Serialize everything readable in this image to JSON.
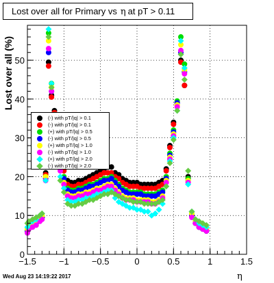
{
  "canvas": {
    "title_prefix": "Lost over all for Primary vs",
    "title_symbol": "η",
    "title_suffix": "at pT > 0.11"
  },
  "footer": {
    "date": "Wed Aug 23 14:19:22 2017"
  },
  "chart_data": {
    "type": "scatter",
    "ylabel": "Lost over all (%)",
    "xlabel": "η",
    "xlim": [
      -1.5,
      1.5
    ],
    "ylim": [
      0,
      59
    ],
    "xticks": [
      -1.5,
      -1.0,
      -0.5,
      0.0,
      0.5,
      1.0,
      1.5
    ],
    "xtick_labels": [
      "−1.5",
      "−1",
      "−0.5",
      "0",
      "0.5",
      "1",
      "1.5"
    ],
    "yticks": [
      0,
      10,
      20,
      30,
      40,
      50
    ],
    "ytick_labels": [
      "0",
      "10",
      "20",
      "30",
      "40",
      "50"
    ],
    "grid": true,
    "legend_position": "left",
    "series": [
      {
        "name": "(-) with pT/|q| > 0.1",
        "color": "#000000",
        "marker": "circle",
        "values": [
          6,
          7,
          7.5,
          8,
          9,
          9.5,
          21,
          49.5,
          41,
          37,
          32,
          25,
          22,
          19,
          18.5,
          18.5,
          19,
          19,
          19.5,
          20,
          20.5,
          21,
          21.5,
          22,
          22.5,
          22.5,
          21,
          20.5,
          19.5,
          19,
          18.5,
          18.5,
          18.5,
          18,
          18,
          18,
          18,
          18,
          18.5,
          19,
          22,
          28,
          34,
          39,
          50,
          43.5,
          20,
          10,
          8,
          7,
          6.5,
          6
        ]
      },
      {
        "name": "(-) with pT/|q| > 0.1",
        "color": "#ff0000",
        "marker": "circle",
        "values": [
          6,
          7,
          7.5,
          8,
          9,
          9.5,
          20.5,
          48.5,
          40.5,
          36.5,
          31.5,
          24.5,
          21.5,
          18,
          17.5,
          17.5,
          18,
          18,
          18.5,
          19,
          19.5,
          20,
          20.5,
          21,
          21,
          21,
          20,
          19.5,
          18.5,
          18,
          17.5,
          17.5,
          17.5,
          17,
          17,
          17,
          17,
          17,
          17.5,
          18,
          21.5,
          27.5,
          33.5,
          38.5,
          49.5,
          43.5,
          19.5,
          10,
          8,
          7,
          6.5,
          6
        ]
      },
      {
        "name": "(+) with pT/|q| > 0.5",
        "color": "#00dd00",
        "marker": "circle",
        "values": [
          6.5,
          7.5,
          8,
          8.5,
          9.5,
          10,
          20,
          57,
          44,
          36,
          30,
          23.5,
          20,
          17,
          16.5,
          16.5,
          17,
          17,
          17.5,
          18,
          18,
          18.5,
          19,
          19.5,
          19.5,
          20,
          19,
          18,
          17,
          16.5,
          16,
          16,
          16,
          16,
          15.5,
          15.5,
          15.5,
          15.5,
          16,
          16.5,
          20,
          26,
          32,
          39.5,
          56,
          49,
          19.5,
          10.5,
          8.5,
          7.5,
          7,
          6.5
        ]
      },
      {
        "name": "(-) with pT/|q| > 0.5",
        "color": "#0000ff",
        "marker": "circle",
        "values": [
          6,
          7,
          7.5,
          8,
          9,
          9.5,
          19.5,
          52,
          42,
          35,
          29.5,
          23,
          19.5,
          16.5,
          16,
          16,
          16.5,
          16.5,
          17,
          17.5,
          17.5,
          18,
          18.5,
          19,
          19,
          19.5,
          18.5,
          17.5,
          16.5,
          16,
          15.5,
          15.5,
          15.5,
          15.5,
          15,
          15,
          15,
          15,
          15.5,
          16,
          19.5,
          25.5,
          31.5,
          39,
          52,
          47,
          19,
          10,
          8,
          7,
          6.5,
          6
        ]
      },
      {
        "name": "(+) with pT/|q| > 1.0",
        "color": "#ffff00",
        "marker": "circle",
        "values": [
          6.5,
          7.5,
          8,
          8.5,
          9.5,
          10,
          20,
          55,
          43,
          34,
          28.5,
          22,
          18.5,
          15.5,
          15,
          15,
          15.5,
          15.5,
          16,
          16,
          16.5,
          17,
          17,
          17.5,
          18,
          18,
          17,
          16,
          15,
          14.5,
          14.5,
          14.5,
          14,
          14,
          14,
          14,
          13.5,
          13.5,
          14,
          15,
          19,
          25,
          31,
          38.5,
          54,
          47.5,
          19,
          10.5,
          8.5,
          7.5,
          7,
          6.5
        ]
      },
      {
        "name": "(-) with pT/|q| > 1.0",
        "color": "#ff00ff",
        "marker": "circle",
        "values": [
          5.5,
          6.5,
          7,
          7.5,
          8.5,
          9,
          19,
          53,
          42,
          33.5,
          28,
          21.5,
          18,
          15,
          14.5,
          14.5,
          15,
          15,
          15.5,
          15.5,
          16,
          16.5,
          16.5,
          17,
          17.5,
          17.5,
          16.5,
          15.5,
          14.5,
          14,
          14,
          14,
          13.5,
          13.5,
          13.5,
          13.5,
          13,
          13,
          13.5,
          14.5,
          18.5,
          24.5,
          30.5,
          38,
          52.5,
          46.5,
          18.5,
          9.5,
          8,
          7,
          6.5,
          6
        ]
      },
      {
        "name": "(+) with pT/|q| > 2.0",
        "color": "#00ffff",
        "marker": "diamond",
        "values": [
          7,
          8,
          8.5,
          9,
          10,
          10.5,
          19,
          58,
          44,
          33,
          27,
          20,
          17,
          14,
          13.5,
          13.5,
          14,
          14,
          14.5,
          14.5,
          15,
          15.5,
          15.5,
          16,
          16.5,
          16.5,
          14.5,
          13.5,
          13,
          12.5,
          12,
          12,
          11.5,
          11.5,
          11,
          11,
          10,
          10.5,
          11.5,
          13,
          17.5,
          24,
          30,
          37,
          55,
          48,
          18,
          11,
          9,
          8,
          7.5,
          7
        ]
      },
      {
        "name": "(-) with pT/|q| > 2.0",
        "color": "#66cc44",
        "marker": "diamond",
        "values": [
          8,
          8.5,
          9,
          9.5,
          10,
          10.5,
          23,
          56,
          43,
          32,
          26,
          19,
          16,
          13,
          12.5,
          12.5,
          13,
          13,
          13.5,
          14,
          14,
          14.5,
          15,
          15.5,
          15.5,
          16,
          15.5,
          15,
          14.5,
          14,
          14,
          13.5,
          13.5,
          13.5,
          13,
          13,
          13,
          13,
          13.5,
          14,
          17.5,
          23.5,
          29.5,
          37,
          51.5,
          45,
          21.5,
          11,
          9,
          8.5,
          8,
          7.5
        ]
      }
    ],
    "x": [
      -1.5,
      -1.48,
      -1.43,
      -1.38,
      -1.33,
      -1.3,
      -1.25,
      -1.21,
      -1.17,
      -1.13,
      -1.09,
      -1.05,
      -1.0,
      -0.95,
      -0.9,
      -0.85,
      -0.8,
      -0.75,
      -0.7,
      -0.65,
      -0.6,
      -0.55,
      -0.5,
      -0.45,
      -0.4,
      -0.35,
      -0.3,
      -0.25,
      -0.2,
      -0.15,
      -0.1,
      -0.05,
      0.0,
      0.05,
      0.1,
      0.15,
      0.2,
      0.25,
      0.3,
      0.35,
      0.4,
      0.45,
      0.5,
      0.55,
      0.6,
      0.65,
      0.7,
      0.75,
      0.8,
      0.85,
      0.9,
      0.95
    ]
  }
}
